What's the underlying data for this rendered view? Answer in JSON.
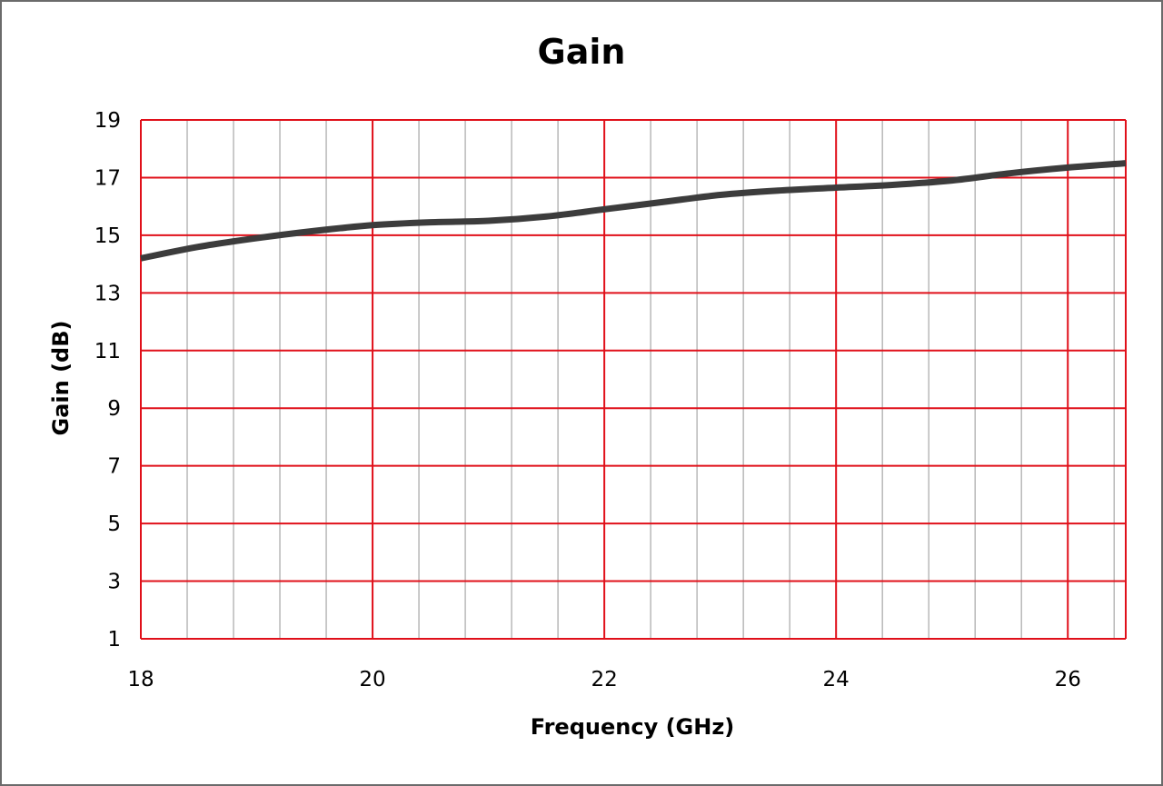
{
  "chart_data": {
    "type": "line",
    "title": "Gain",
    "xlabel": "Frequency (GHz)",
    "ylabel": "Gain (dB)",
    "xlim": [
      18,
      26.5
    ],
    "ylim": [
      1,
      19
    ],
    "x_ticks": [
      "18",
      "20",
      "22",
      "24",
      "26"
    ],
    "y_ticks": [
      "1",
      "3",
      "5",
      "7",
      "9",
      "11",
      "13",
      "15",
      "17",
      "19"
    ],
    "x_major_step": 2,
    "x_minor_step": 0.4,
    "y_step": 2,
    "grid": true,
    "series": [
      {
        "x": [
          18.0,
          18.5,
          19.0,
          19.5,
          20.0,
          20.5,
          21.0,
          21.5,
          22.0,
          22.5,
          23.0,
          23.5,
          24.0,
          24.5,
          25.0,
          25.5,
          26.0,
          26.5
        ],
        "values": [
          14.2,
          14.6,
          14.9,
          15.15,
          15.35,
          15.45,
          15.5,
          15.65,
          15.9,
          16.15,
          16.4,
          16.55,
          16.65,
          16.75,
          16.9,
          17.15,
          17.35,
          17.5
        ]
      }
    ],
    "colors": {
      "major_grid": "#e0101a",
      "minor_grid": "#b8b8b8",
      "line": "#3c3c3c"
    }
  }
}
